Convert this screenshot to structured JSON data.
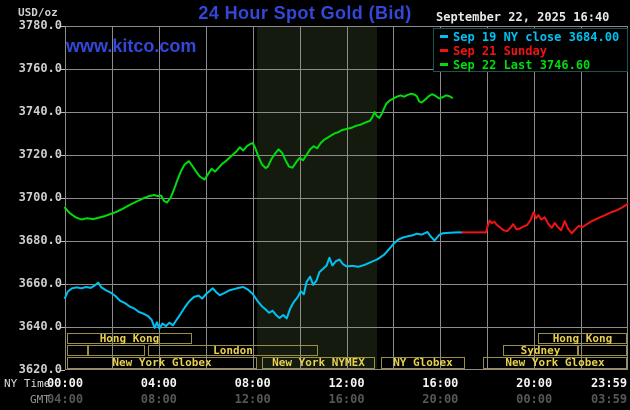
{
  "header": {
    "unit_label": "USD/oz",
    "title": "24 Hour Spot Gold (Bid)",
    "datetime": "September 22, 2025 16:40",
    "watermark": "www.kitco.com"
  },
  "legend": {
    "items": [
      {
        "label": "Sep 19 NY close 3684.00",
        "color": "#00c2f2"
      },
      {
        "label": "Sep 21 Sunday",
        "color": "#ef1414"
      },
      {
        "label": "Sep 22 Last 3746.60",
        "color": "#00dc0c"
      }
    ]
  },
  "axes": {
    "ny_time_label": "NY Time",
    "gmt_label": "GMT",
    "y_tick_labels": [
      "3780.0",
      "3760.0",
      "3740.0",
      "3720.0",
      "3700.0",
      "3680.0",
      "3660.0",
      "3640.0",
      "3620.0"
    ],
    "y_tick_values": [
      3780,
      3760,
      3740,
      3720,
      3700,
      3680,
      3660,
      3640,
      3620
    ],
    "x_ticks": [
      {
        "hour": 0,
        "ny": "00:00",
        "gmt": "04:00"
      },
      {
        "hour": 4,
        "ny": "04:00",
        "gmt": "08:00"
      },
      {
        "hour": 8,
        "ny": "08:00",
        "gmt": "12:00"
      },
      {
        "hour": 12,
        "ny": "12:00",
        "gmt": "16:00"
      },
      {
        "hour": 16,
        "ny": "16:00",
        "gmt": "20:00"
      },
      {
        "hour": 20,
        "ny": "20:00",
        "gmt": "00:00"
      },
      {
        "hour": 23.98,
        "ny": "23:59",
        "gmt": "03:59"
      }
    ]
  },
  "sessions": {
    "rows": [
      [
        {
          "label": "Hong Kong",
          "t0": 0.09,
          "t1": 5.41
        },
        {
          "label": "Hong Kong",
          "t0": 20.16,
          "t1": 23.97
        }
      ],
      [
        {
          "label": "",
          "t0": 0.09,
          "t1": 0.98
        },
        {
          "label": "",
          "t0": 0.98,
          "t1": 3.41
        },
        {
          "label": "London",
          "t0": 3.54,
          "t1": 10.78
        },
        {
          "label": "Sydney",
          "t0": 18.67,
          "t1": 21.87
        },
        {
          "label": "",
          "t0": 21.87,
          "t1": 23.97
        }
      ],
      [
        {
          "label": "New York Globex",
          "t0": 0.09,
          "t1": 8.19
        },
        {
          "label": "New York NYMEX",
          "t0": 8.4,
          "t1": 13.21
        },
        {
          "label": "NY Globex",
          "t0": 13.47,
          "t1": 17.05
        },
        {
          "label": "New York Globex",
          "t0": 17.82,
          "t1": 23.97
        }
      ]
    ]
  },
  "chart_data": {
    "type": "line",
    "title": "24 Hour Spot Gold (Bid)",
    "ylabel": "USD/oz",
    "xlabel": "NY Time (hours, 00:00-23:59)",
    "ylim": [
      3620,
      3780
    ],
    "y_step": 20,
    "xlim_hours": [
      0,
      24
    ],
    "x_grid_step_hours": 2,
    "grid": true,
    "legend_position": "top-right",
    "grid_color": "#8c8c8c",
    "band_color": "#151a0e",
    "shaded_band_hours": [
      8.19,
      13.3
    ],
    "series": [
      {
        "name": "Sep 19 NY close 3684.00",
        "color": "#00c2f2",
        "close_value": 3684.0,
        "points": [
          [
            0,
            3653.5
          ],
          [
            0.12,
            3656.5
          ],
          [
            0.3,
            3658
          ],
          [
            0.5,
            3658.4
          ],
          [
            0.7,
            3658
          ],
          [
            0.9,
            3658.6
          ],
          [
            1.1,
            3658.2
          ],
          [
            1.3,
            3659.6
          ],
          [
            1.42,
            3660.6
          ],
          [
            1.55,
            3658.4
          ],
          [
            1.75,
            3657
          ],
          [
            1.95,
            3656
          ],
          [
            2.15,
            3654.4
          ],
          [
            2.35,
            3652.2
          ],
          [
            2.55,
            3651.2
          ],
          [
            2.75,
            3649.6
          ],
          [
            2.95,
            3648.6
          ],
          [
            3.15,
            3647
          ],
          [
            3.35,
            3646.2
          ],
          [
            3.55,
            3645
          ],
          [
            3.7,
            3643.2
          ],
          [
            3.82,
            3639.6
          ],
          [
            3.92,
            3642.2
          ],
          [
            4.02,
            3639.2
          ],
          [
            4.15,
            3641.6
          ],
          [
            4.3,
            3640.4
          ],
          [
            4.45,
            3642
          ],
          [
            4.6,
            3640.8
          ],
          [
            4.75,
            3643.2
          ],
          [
            4.9,
            3645.6
          ],
          [
            5.1,
            3649
          ],
          [
            5.3,
            3652
          ],
          [
            5.5,
            3654
          ],
          [
            5.7,
            3654.6
          ],
          [
            5.85,
            3653.2
          ],
          [
            6,
            3655.2
          ],
          [
            6.15,
            3656.6
          ],
          [
            6.3,
            3658
          ],
          [
            6.45,
            3656.2
          ],
          [
            6.6,
            3654.8
          ],
          [
            6.8,
            3655.8
          ],
          [
            7,
            3657
          ],
          [
            7.2,
            3657.6
          ],
          [
            7.4,
            3658.2
          ],
          [
            7.6,
            3658.6
          ],
          [
            7.8,
            3657.4
          ],
          [
            8,
            3655.4
          ],
          [
            8.2,
            3652.2
          ],
          [
            8.4,
            3649.6
          ],
          [
            8.55,
            3648.2
          ],
          [
            8.7,
            3646.6
          ],
          [
            8.85,
            3647.6
          ],
          [
            9,
            3645.6
          ],
          [
            9.15,
            3644.2
          ],
          [
            9.3,
            3645.6
          ],
          [
            9.45,
            3644
          ],
          [
            9.6,
            3648.6
          ],
          [
            9.75,
            3651.6
          ],
          [
            9.9,
            3653.6
          ],
          [
            10.05,
            3656.6
          ],
          [
            10.18,
            3655.2
          ],
          [
            10.3,
            3661
          ],
          [
            10.45,
            3663.4
          ],
          [
            10.58,
            3659.6
          ],
          [
            10.72,
            3661.6
          ],
          [
            10.85,
            3665.6
          ],
          [
            11,
            3667
          ],
          [
            11.15,
            3668.6
          ],
          [
            11.27,
            3672.2
          ],
          [
            11.4,
            3668.6
          ],
          [
            11.55,
            3670.6
          ],
          [
            11.7,
            3671.4
          ],
          [
            11.85,
            3669.2
          ],
          [
            12,
            3668.2
          ],
          [
            12.25,
            3668.4
          ],
          [
            12.5,
            3668
          ],
          [
            12.75,
            3668.8
          ],
          [
            13,
            3670
          ],
          [
            13.3,
            3671.4
          ],
          [
            13.6,
            3673.6
          ],
          [
            13.8,
            3676
          ],
          [
            14,
            3678.6
          ],
          [
            14.2,
            3680.6
          ],
          [
            14.4,
            3681.6
          ],
          [
            14.6,
            3682.2
          ],
          [
            14.8,
            3682.6
          ],
          [
            15,
            3683.4
          ],
          [
            15.2,
            3683
          ],
          [
            15.45,
            3684.2
          ],
          [
            15.6,
            3682
          ],
          [
            15.75,
            3680.2
          ],
          [
            15.95,
            3682.8
          ],
          [
            16.1,
            3683.6
          ],
          [
            16.4,
            3683.8
          ],
          [
            16.7,
            3684
          ],
          [
            16.95,
            3684
          ]
        ]
      },
      {
        "name": "Sep 21 Sunday",
        "color": "#ef1414",
        "points": [
          [
            16.95,
            3684
          ],
          [
            17.5,
            3684
          ],
          [
            17.95,
            3684
          ],
          [
            18.02,
            3687
          ],
          [
            18.1,
            3689.5
          ],
          [
            18.2,
            3688.3
          ],
          [
            18.3,
            3689
          ],
          [
            18.4,
            3687.6
          ],
          [
            18.55,
            3686.3
          ],
          [
            18.7,
            3685
          ],
          [
            18.85,
            3684.6
          ],
          [
            19,
            3686.3
          ],
          [
            19.1,
            3687.8
          ],
          [
            19.25,
            3685.4
          ],
          [
            19.4,
            3685.8
          ],
          [
            19.55,
            3686.8
          ],
          [
            19.7,
            3687.4
          ],
          [
            19.85,
            3689.8
          ],
          [
            19.98,
            3693.4
          ],
          [
            20.08,
            3690.6
          ],
          [
            20.18,
            3692
          ],
          [
            20.3,
            3690
          ],
          [
            20.45,
            3691
          ],
          [
            20.6,
            3688
          ],
          [
            20.75,
            3686.2
          ],
          [
            20.88,
            3688.4
          ],
          [
            21,
            3686.6
          ],
          [
            21.15,
            3685
          ],
          [
            21.3,
            3689.2
          ],
          [
            21.45,
            3685.6
          ],
          [
            21.6,
            3683.6
          ],
          [
            21.75,
            3685.4
          ],
          [
            21.9,
            3687
          ],
          [
            22.05,
            3686.4
          ],
          [
            22.25,
            3687.8
          ],
          [
            22.45,
            3689.2
          ],
          [
            22.65,
            3690.2
          ],
          [
            22.85,
            3691.2
          ],
          [
            23.05,
            3692.2
          ],
          [
            23.25,
            3693.2
          ],
          [
            23.5,
            3694.2
          ],
          [
            23.75,
            3695.6
          ],
          [
            23.98,
            3697.2
          ]
        ]
      },
      {
        "name": "Sep 22 Last 3746.60",
        "color": "#00dc0c",
        "last_value": 3746.6,
        "points": [
          [
            0,
            3695.5
          ],
          [
            0.2,
            3693
          ],
          [
            0.45,
            3691
          ],
          [
            0.7,
            3690
          ],
          [
            0.95,
            3690.6
          ],
          [
            1.2,
            3690.2
          ],
          [
            1.45,
            3690.9
          ],
          [
            1.7,
            3691.6
          ],
          [
            1.9,
            3692.4
          ],
          [
            2.2,
            3693.6
          ],
          [
            2.5,
            3695.2
          ],
          [
            2.8,
            3697
          ],
          [
            3.1,
            3698.6
          ],
          [
            3.35,
            3699.9
          ],
          [
            3.6,
            3700.9
          ],
          [
            3.8,
            3701.4
          ],
          [
            3.95,
            3700.9
          ],
          [
            4.1,
            3701.1
          ],
          [
            4.22,
            3698.6
          ],
          [
            4.35,
            3697.9
          ],
          [
            4.5,
            3700.1
          ],
          [
            4.65,
            3704.1
          ],
          [
            4.8,
            3708.6
          ],
          [
            4.95,
            3712.6
          ],
          [
            5.1,
            3715.6
          ],
          [
            5.28,
            3717.1
          ],
          [
            5.45,
            3714.6
          ],
          [
            5.6,
            3712.1
          ],
          [
            5.75,
            3709.9
          ],
          [
            5.95,
            3708.6
          ],
          [
            6.1,
            3711.1
          ],
          [
            6.25,
            3713.6
          ],
          [
            6.4,
            3712.3
          ],
          [
            6.55,
            3714.1
          ],
          [
            6.7,
            3715.9
          ],
          [
            6.85,
            3717.1
          ],
          [
            7,
            3718.6
          ],
          [
            7.15,
            3720.1
          ],
          [
            7.3,
            3721.6
          ],
          [
            7.45,
            3723.6
          ],
          [
            7.6,
            3722.1
          ],
          [
            7.75,
            3724.1
          ],
          [
            7.9,
            3725.1
          ],
          [
            8,
            3725.6
          ],
          [
            8.1,
            3723.6
          ],
          [
            8.25,
            3719.1
          ],
          [
            8.4,
            3715.6
          ],
          [
            8.55,
            3713.9
          ],
          [
            8.65,
            3714.6
          ],
          [
            8.8,
            3718.1
          ],
          [
            8.95,
            3720.6
          ],
          [
            9.1,
            3722.6
          ],
          [
            9.25,
            3721.1
          ],
          [
            9.4,
            3717.6
          ],
          [
            9.55,
            3714.6
          ],
          [
            9.7,
            3714.1
          ],
          [
            9.85,
            3716.6
          ],
          [
            10,
            3718.6
          ],
          [
            10.15,
            3717.6
          ],
          [
            10.3,
            3720.1
          ],
          [
            10.45,
            3722.6
          ],
          [
            10.6,
            3724.1
          ],
          [
            10.75,
            3723.1
          ],
          [
            10.9,
            3725.6
          ],
          [
            11.05,
            3727.1
          ],
          [
            11.2,
            3728.1
          ],
          [
            11.35,
            3729.1
          ],
          [
            11.5,
            3730.1
          ],
          [
            11.65,
            3730.6
          ],
          [
            11.8,
            3731.6
          ],
          [
            12,
            3732.1
          ],
          [
            12.2,
            3732.6
          ],
          [
            12.4,
            3733.6
          ],
          [
            12.6,
            3734.1
          ],
          [
            12.8,
            3735.1
          ],
          [
            13,
            3735.9
          ],
          [
            13.1,
            3737.6
          ],
          [
            13.2,
            3739.9
          ],
          [
            13.3,
            3738.1
          ],
          [
            13.4,
            3737.3
          ],
          [
            13.5,
            3739.1
          ],
          [
            13.6,
            3741.6
          ],
          [
            13.7,
            3743.9
          ],
          [
            13.85,
            3745.4
          ],
          [
            14,
            3746.3
          ],
          [
            14.15,
            3747.1
          ],
          [
            14.3,
            3747.7
          ],
          [
            14.45,
            3747.1
          ],
          [
            14.6,
            3747.9
          ],
          [
            14.75,
            3748.5
          ],
          [
            14.9,
            3748.1
          ],
          [
            15,
            3747.3
          ],
          [
            15.1,
            3744.9
          ],
          [
            15.2,
            3744.4
          ],
          [
            15.35,
            3745.7
          ],
          [
            15.5,
            3747.3
          ],
          [
            15.65,
            3748.3
          ],
          [
            15.8,
            3747.5
          ],
          [
            15.95,
            3746.3
          ],
          [
            16.1,
            3746.9
          ],
          [
            16.25,
            3747.7
          ],
          [
            16.4,
            3747.3
          ],
          [
            16.5,
            3746.6
          ]
        ]
      }
    ]
  }
}
